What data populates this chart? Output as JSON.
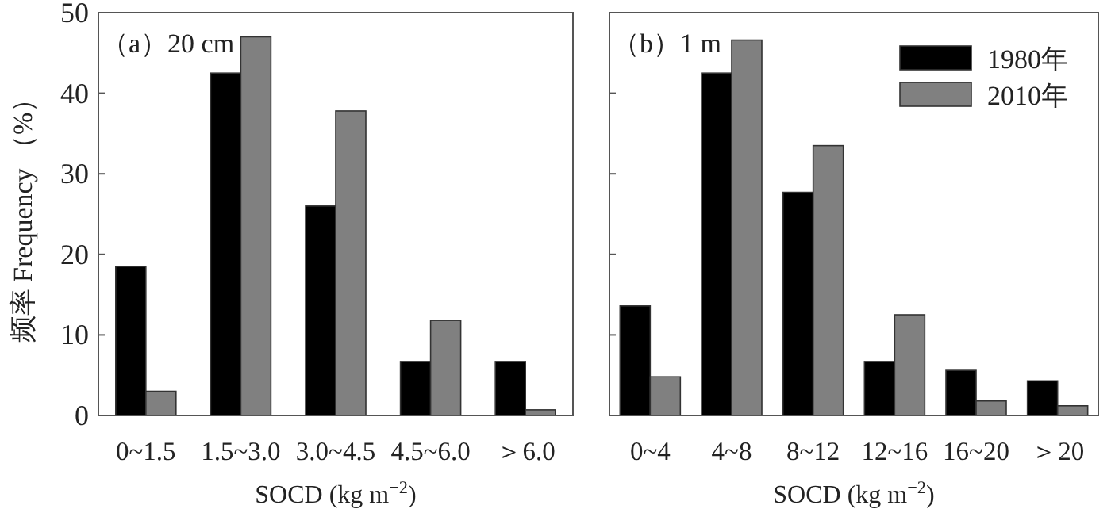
{
  "chart_data": [
    {
      "type": "bar",
      "title": "（a）20 cm",
      "xlabel": "SOCD (kg m$^{−2}$)",
      "ylabel": "频率 Frequency （%）",
      "categories": [
        "0~1.5",
        "1.5~3.0",
        "3.0~4.5",
        "4.5~6.0",
        "＞6.0"
      ],
      "series": [
        {
          "color": "#000000",
          "values": [
            18.5,
            42.5,
            26.0,
            6.7,
            6.7
          ]
        },
        {
          "color": "#808080",
          "values": [
            3.0,
            47.0,
            37.8,
            11.8,
            0.7
          ]
        }
      ],
      "ylim": [
        0,
        50
      ],
      "yticks": [
        0,
        10,
        20,
        30,
        40,
        50
      ],
      "grid": false,
      "legend": false
    },
    {
      "type": "bar",
      "title": "（b）1 m",
      "xlabel": "SOCD (kg m$^{−2}$)",
      "categories": [
        "0~4",
        "4~8",
        "8~12",
        "12~16",
        "16~20",
        "＞20"
      ],
      "series": [
        {
          "name": "1980年",
          "color": "#000000",
          "values": [
            13.6,
            42.5,
            27.7,
            6.7,
            5.6,
            4.3
          ]
        },
        {
          "name": "2010年",
          "color": "#808080",
          "values": [
            4.8,
            46.6,
            33.5,
            12.5,
            1.8,
            1.2
          ]
        }
      ],
      "ylim": [
        0,
        50
      ],
      "yticks": [
        0,
        10,
        20,
        30,
        40,
        50
      ],
      "tick_labels": "x",
      "grid": false,
      "legend": "top right"
    }
  ]
}
